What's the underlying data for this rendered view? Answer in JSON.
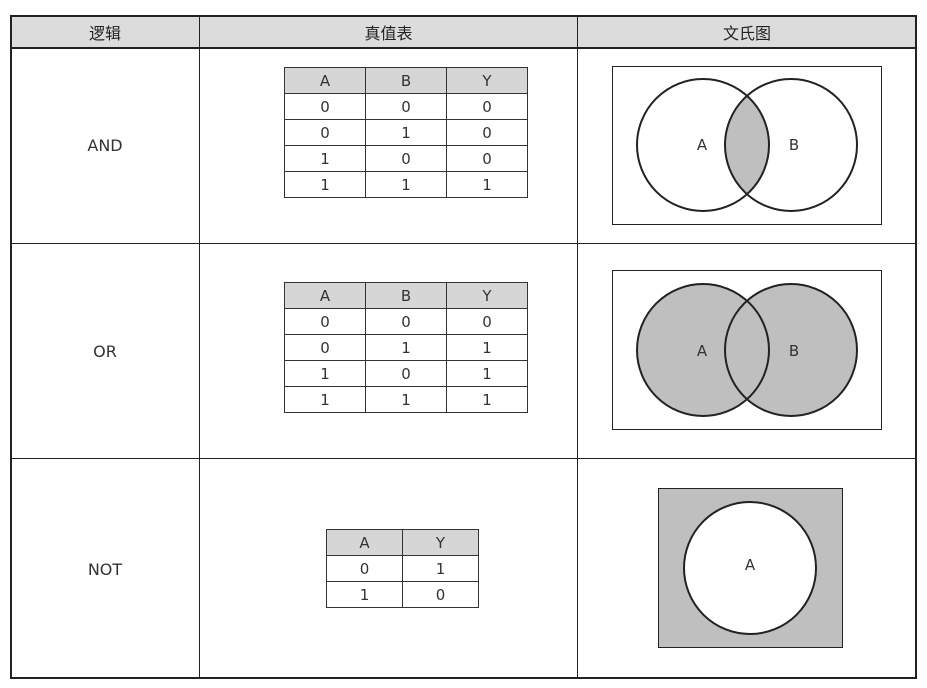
{
  "header": {
    "col_logic": "逻辑",
    "col_truth_table": "真值表",
    "col_venn": "文氏图"
  },
  "rows": [
    {
      "logic": "AND",
      "truth_table": {
        "headers": [
          "A",
          "B",
          "Y"
        ],
        "rows": [
          [
            "0",
            "0",
            "0"
          ],
          [
            "0",
            "1",
            "0"
          ],
          [
            "1",
            "0",
            "0"
          ],
          [
            "1",
            "1",
            "1"
          ]
        ]
      },
      "venn": {
        "labels": [
          "A",
          "B"
        ],
        "shaded": "intersection"
      }
    },
    {
      "logic": "OR",
      "truth_table": {
        "headers": [
          "A",
          "B",
          "Y"
        ],
        "rows": [
          [
            "0",
            "0",
            "0"
          ],
          [
            "0",
            "1",
            "1"
          ],
          [
            "1",
            "0",
            "1"
          ],
          [
            "1",
            "1",
            "1"
          ]
        ]
      },
      "venn": {
        "labels": [
          "A",
          "B"
        ],
        "shaded": "union"
      }
    },
    {
      "logic": "NOT",
      "truth_table": {
        "headers": [
          "A",
          "Y"
        ],
        "rows": [
          [
            "0",
            "1"
          ],
          [
            "1",
            "0"
          ]
        ]
      },
      "venn": {
        "labels": [
          "A"
        ],
        "shaded": "complement"
      }
    }
  ],
  "colors": {
    "shade": "#bfbfbf",
    "line": "#222222",
    "header_bg": "#dcdcdc"
  }
}
